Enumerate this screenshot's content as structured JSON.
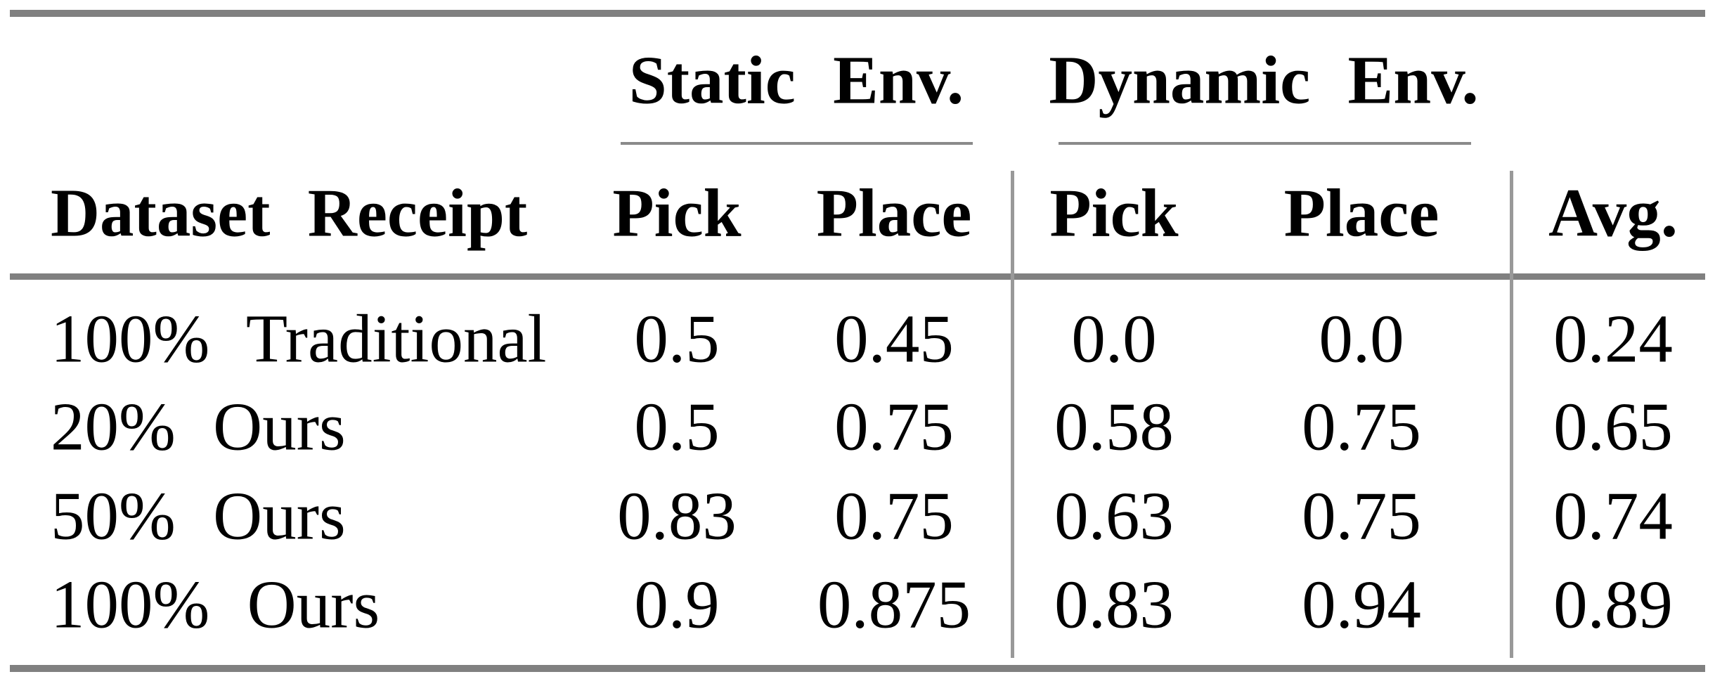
{
  "colors": {
    "background": "#ffffff",
    "text": "#000000",
    "rule_thick": "#808080",
    "rule_thin": "#8a8a8a",
    "rule_vertical": "#999999"
  },
  "table": {
    "group_headers": [
      {
        "label": "Static Env."
      },
      {
        "label": "Dynamic Env."
      }
    ],
    "column_headers": {
      "row_label": "Dataset Receipt",
      "static_pick": "Pick",
      "static_place": "Place",
      "dynamic_pick": "Pick",
      "dynamic_place": "Place",
      "avg": "Avg."
    },
    "rows": [
      {
        "label": "100% Traditional",
        "values": [
          "0.5",
          "0.45",
          "0.0",
          "0.0",
          "0.24"
        ]
      },
      {
        "label": "20% Ours",
        "values": [
          "0.5",
          "0.75",
          "0.58",
          "0.75",
          "0.65"
        ]
      },
      {
        "label": "50% Ours",
        "values": [
          "0.83",
          "0.75",
          "0.63",
          "0.75",
          "0.74"
        ]
      },
      {
        "label": "100% Ours",
        "values": [
          "0.9",
          "0.875",
          "0.83",
          "0.94",
          "0.89"
        ]
      }
    ]
  }
}
